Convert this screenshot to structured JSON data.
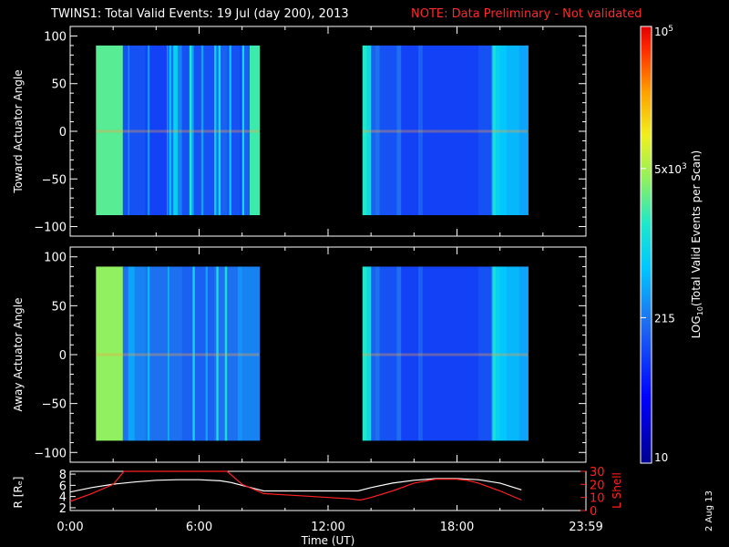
{
  "header": {
    "title": "TWINS1: Total Valid Events: 19 Jul (day 200), 2013",
    "note": "NOTE: Data Preliminary - Not validated"
  },
  "footer": {
    "date_stamp": "2 Aug 13"
  },
  "colors": {
    "background": "#000000",
    "axes": "#ffffff",
    "note": "#ff2a2a",
    "r_series": "#ffffff",
    "lshell_series": "#ff2020",
    "no_data": "#000000"
  },
  "chart_data": [
    {
      "type": "heatmap",
      "panel": "toward",
      "ylabel": "Toward Actuator Angle",
      "xlim": [
        0,
        24
      ],
      "ylim": [
        -110,
        110
      ],
      "yticks": [
        -100,
        -50,
        0,
        50,
        100
      ],
      "ytick_labels": [
        "−100",
        "−50",
        "0",
        "50",
        "100"
      ],
      "data_y_range": [
        -88,
        90
      ],
      "data_intervals_ut_hours": [
        [
          1.2,
          8.8
        ],
        [
          13.6,
          21.3
        ]
      ],
      "value_unit": "LOG10(Total Valid Events per Scan)",
      "profile_log10": [
        [
          1.2,
          3.4
        ],
        [
          2.4,
          3.4
        ],
        [
          2.45,
          2.1
        ],
        [
          2.6,
          2.1
        ],
        [
          2.7,
          2.6
        ],
        [
          2.75,
          2.1
        ],
        [
          3.5,
          2.0
        ],
        [
          3.6,
          2.5
        ],
        [
          3.7,
          2.0
        ],
        [
          4.4,
          2.0
        ],
        [
          4.5,
          2.7
        ],
        [
          4.55,
          2.0
        ],
        [
          4.6,
          2.8
        ],
        [
          4.7,
          2.3
        ],
        [
          4.8,
          2.9
        ],
        [
          5.0,
          2.4
        ],
        [
          5.2,
          2.1
        ],
        [
          5.4,
          2.1
        ],
        [
          5.55,
          3.2
        ],
        [
          5.65,
          2.6
        ],
        [
          5.75,
          2.1
        ],
        [
          6.0,
          2.1
        ],
        [
          6.1,
          2.6
        ],
        [
          6.2,
          2.1
        ],
        [
          6.6,
          2.1
        ],
        [
          6.7,
          2.9
        ],
        [
          6.8,
          2.3
        ],
        [
          6.9,
          3.0
        ],
        [
          7.0,
          2.2
        ],
        [
          7.3,
          2.1
        ],
        [
          7.4,
          2.8
        ],
        [
          7.5,
          2.1
        ],
        [
          7.9,
          2.0
        ],
        [
          8.0,
          3.0
        ],
        [
          8.1,
          2.2
        ],
        [
          8.3,
          2.1
        ],
        [
          8.35,
          3.3
        ],
        [
          8.8,
          3.3
        ],
        [
          13.6,
          3.2
        ],
        [
          13.8,
          3.0
        ],
        [
          14.0,
          2.2
        ],
        [
          14.2,
          2.3
        ],
        [
          14.4,
          2.1
        ],
        [
          15.0,
          2.1
        ],
        [
          15.2,
          2.3
        ],
        [
          15.4,
          2.0
        ],
        [
          16.0,
          2.0
        ],
        [
          16.2,
          2.2
        ],
        [
          16.4,
          2.0
        ],
        [
          17.0,
          2.0
        ],
        [
          17.5,
          2.0
        ],
        [
          18.0,
          2.0
        ],
        [
          18.5,
          2.0
        ],
        [
          19.0,
          2.1
        ],
        [
          19.5,
          2.1
        ],
        [
          19.6,
          2.4
        ],
        [
          19.65,
          3.1
        ],
        [
          19.8,
          2.9
        ],
        [
          20.0,
          2.8
        ],
        [
          20.3,
          2.7
        ],
        [
          20.6,
          2.7
        ],
        [
          20.9,
          2.6
        ],
        [
          21.3,
          2.6
        ]
      ]
    },
    {
      "type": "heatmap",
      "panel": "away",
      "ylabel": "Away Actuator Angle",
      "xlim": [
        0,
        24
      ],
      "ylim": [
        -110,
        110
      ],
      "yticks": [
        -100,
        -50,
        0,
        50,
        100
      ],
      "ytick_labels": [
        "−100",
        "−50",
        "0",
        "50",
        "100"
      ],
      "data_y_range": [
        -88,
        90
      ],
      "data_intervals_ut_hours": [
        [
          1.2,
          8.8
        ],
        [
          13.6,
          21.3
        ]
      ],
      "value_unit": "LOG10(Total Valid Events per Scan)",
      "profile_log10": [
        [
          1.2,
          3.6
        ],
        [
          2.4,
          3.6
        ],
        [
          2.45,
          2.3
        ],
        [
          2.7,
          2.6
        ],
        [
          3.0,
          2.4
        ],
        [
          3.5,
          2.3
        ],
        [
          3.6,
          2.7
        ],
        [
          3.7,
          2.3
        ],
        [
          4.5,
          2.3
        ],
        [
          4.55,
          2.9
        ],
        [
          4.6,
          2.3
        ],
        [
          5.0,
          2.3
        ],
        [
          5.2,
          2.2
        ],
        [
          5.6,
          2.2
        ],
        [
          5.7,
          3.0
        ],
        [
          5.8,
          2.2
        ],
        [
          6.2,
          2.2
        ],
        [
          6.3,
          2.6
        ],
        [
          6.4,
          2.2
        ],
        [
          6.7,
          2.3
        ],
        [
          6.8,
          3.1
        ],
        [
          6.9,
          2.3
        ],
        [
          7.1,
          2.3
        ],
        [
          7.2,
          3.1
        ],
        [
          7.3,
          2.3
        ],
        [
          7.6,
          2.3
        ],
        [
          7.8,
          2.5
        ],
        [
          8.0,
          2.4
        ],
        [
          8.8,
          2.3
        ],
        [
          13.6,
          3.2
        ],
        [
          13.8,
          3.0
        ],
        [
          14.0,
          2.2
        ],
        [
          14.2,
          2.3
        ],
        [
          14.4,
          2.1
        ],
        [
          15.0,
          2.1
        ],
        [
          15.2,
          2.3
        ],
        [
          15.4,
          2.0
        ],
        [
          16.0,
          2.0
        ],
        [
          16.2,
          2.2
        ],
        [
          16.4,
          2.0
        ],
        [
          17.0,
          2.0
        ],
        [
          17.5,
          2.0
        ],
        [
          18.0,
          2.0
        ],
        [
          18.5,
          2.0
        ],
        [
          19.0,
          2.1
        ],
        [
          19.5,
          2.1
        ],
        [
          19.6,
          2.4
        ],
        [
          19.65,
          3.1
        ],
        [
          19.8,
          2.9
        ],
        [
          20.0,
          2.8
        ],
        [
          20.3,
          2.7
        ],
        [
          20.6,
          2.7
        ],
        [
          20.9,
          2.6
        ],
        [
          21.3,
          2.6
        ]
      ]
    },
    {
      "type": "line",
      "panel": "orbit",
      "xlabel": "Time (UT)",
      "xlim": [
        0,
        24
      ],
      "xticks": [
        0,
        6,
        12,
        18,
        24
      ],
      "xtick_labels": [
        "0:00",
        "6:00",
        "12:00",
        "18:00",
        "23:59"
      ],
      "ylabel_left": "R [Rₑ]",
      "ylim_left": [
        1.5,
        8.5
      ],
      "yticks_left": [
        2,
        4,
        6,
        8
      ],
      "ylabel_right": "L Shell",
      "ylim_right": [
        0,
        30
      ],
      "yticks_right": [
        0,
        10,
        20,
        30
      ],
      "series": [
        {
          "axis": "left",
          "x": [
            0.0,
            1.0,
            2.0,
            3.0,
            4.0,
            5.0,
            6.0,
            7.0,
            7.5,
            8.0,
            8.5,
            9.0,
            10.0,
            11.0,
            12.0,
            13.0,
            13.4,
            14.0,
            15.0,
            16.0,
            17.0,
            18.0,
            19.0,
            20.0,
            21.0
          ],
          "y": [
            4.8,
            5.6,
            6.2,
            6.6,
            6.9,
            7.0,
            7.0,
            6.8,
            6.5,
            6.0,
            5.5,
            5.0,
            5.0,
            5.0,
            5.0,
            5.0,
            5.0,
            5.6,
            6.4,
            6.9,
            7.2,
            7.2,
            7.0,
            6.4,
            5.2
          ]
        },
        {
          "axis": "right",
          "x": [
            0.0,
            1.0,
            2.0,
            2.5,
            7.3,
            8.0,
            9.0,
            10.0,
            11.0,
            12.0,
            13.0,
            13.5,
            14.0,
            15.0,
            16.0,
            17.0,
            18.0,
            18.5,
            19.0,
            20.0,
            21.0
          ],
          "y": [
            7,
            13,
            20,
            30,
            30,
            20,
            13,
            12,
            11,
            10,
            9,
            8,
            10,
            15,
            21,
            24,
            24,
            23,
            21,
            15,
            8
          ]
        }
      ]
    }
  ],
  "colorbar": {
    "label": "LOG",
    "label_sub": "10",
    "label_rest": "(Total Valid Events per Scan)",
    "scale": "log",
    "range": [
      10,
      100000
    ],
    "ticks": [
      {
        "value": 10,
        "text": "10"
      },
      {
        "value": 215,
        "text": "215"
      },
      {
        "value": 5000,
        "text": "5x10",
        "sup": "3"
      },
      {
        "value": 100000,
        "text": "10",
        "sup": "5"
      }
    ]
  }
}
